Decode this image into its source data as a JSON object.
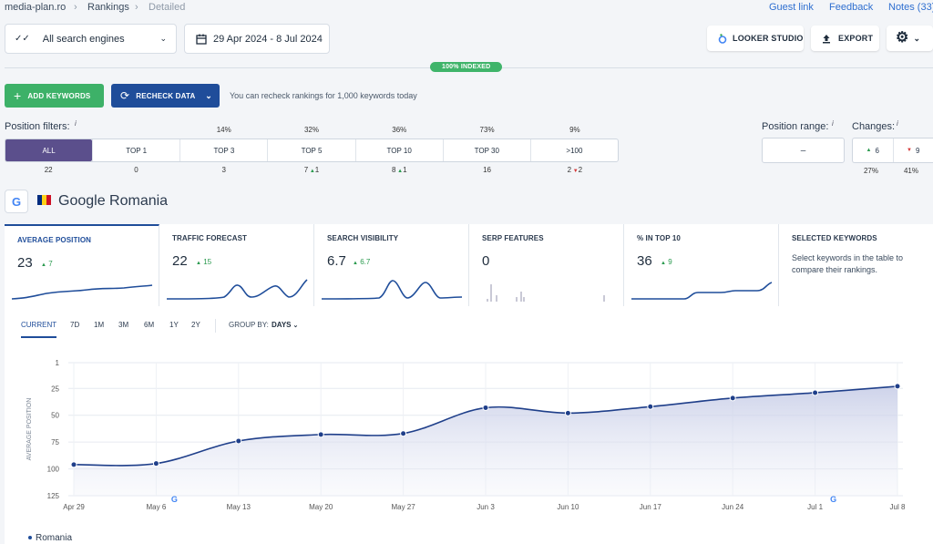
{
  "breadcrumb": {
    "project": "media-plan.ro",
    "section": "Rankings",
    "page": "Detailed"
  },
  "top_links": {
    "guest": "Guest link",
    "feedback": "Feedback",
    "notes": "Notes (33)"
  },
  "toolbar": {
    "engines": "All search engines",
    "date_range": "29 Apr 2024 - 8 Jul 2024",
    "looker": "LOOKER STUDIO",
    "export": "EXPORT"
  },
  "indexed_badge": "100% INDEXED",
  "actions": {
    "add_keywords": "ADD KEYWORDS",
    "recheck": "RECHECK DATA",
    "recheck_info": "You can recheck rankings for 1,000 keywords today"
  },
  "filters": {
    "label": "Position filters:",
    "info": "i",
    "items": [
      {
        "label": "ALL",
        "pct": "",
        "count": "22",
        "delta": "",
        "dir": ""
      },
      {
        "label": "TOP 1",
        "pct": "",
        "count": "0",
        "delta": "",
        "dir": ""
      },
      {
        "label": "TOP 3",
        "pct": "14%",
        "count": "3",
        "delta": "",
        "dir": ""
      },
      {
        "label": "TOP 5",
        "pct": "32%",
        "count": "7",
        "delta": "1",
        "dir": "up"
      },
      {
        "label": "TOP 10",
        "pct": "36%",
        "count": "8",
        "delta": "1",
        "dir": "up"
      },
      {
        "label": "TOP 30",
        "pct": "73%",
        "count": "16",
        "delta": "",
        "dir": ""
      },
      {
        "label": ">100",
        "pct": "9%",
        "count": "2",
        "delta": "2",
        "dir": "down"
      }
    ],
    "range_label": "Position range:",
    "range_value": "–",
    "changes_label": "Changes:",
    "changes_up": "6",
    "changes_down": "9",
    "changes_up_pct": "27%",
    "changes_down_pct": "41%"
  },
  "engine": {
    "name": "Google Romania",
    "flag_colors": [
      "#002b7f",
      "#fcd116",
      "#ce1126"
    ]
  },
  "metrics": [
    {
      "title": "AVERAGE POSITION",
      "value": "23",
      "delta": "7"
    },
    {
      "title": "TRAFFIC FORECAST",
      "value": "22",
      "delta": "15"
    },
    {
      "title": "SEARCH VISIBILITY",
      "value": "6.7",
      "delta": "6.7"
    },
    {
      "title": "SERP FEATURES",
      "value": "0",
      "delta": ""
    },
    {
      "title": "% IN TOP 10",
      "value": "36",
      "delta": "9"
    }
  ],
  "selected_keywords": {
    "title": "SELECTED KEYWORDS",
    "text": "Select keywords in the table to compare their rankings."
  },
  "period_tabs": [
    "CURRENT",
    "7D",
    "1M",
    "3M",
    "6M",
    "1Y",
    "2Y"
  ],
  "group_by": {
    "label": "GROUP BY:",
    "value": "DAYS"
  },
  "legend": "Romania",
  "colors": {
    "accent": "#1f4d9a",
    "green": "#3db168",
    "purple": "#5b4f8c"
  },
  "chart_data": {
    "type": "area",
    "ylabel": "AVERAGE POSITION",
    "yticks": [
      1,
      25,
      50,
      75,
      100,
      125
    ],
    "ylim": [
      125,
      1
    ],
    "reversed_y": true,
    "xticks": [
      "Apr 29",
      "May 6",
      "May 13",
      "May 20",
      "May 27",
      "Jun 3",
      "Jun 10",
      "Jun 17",
      "Jun 24",
      "Jul 1",
      "Jul 8"
    ],
    "series": [
      {
        "name": "Romania",
        "values": [
          96,
          95,
          74,
          68,
          67,
          43,
          48,
          42,
          34,
          29,
          23
        ]
      }
    ],
    "legend_position": "bottom-left"
  }
}
